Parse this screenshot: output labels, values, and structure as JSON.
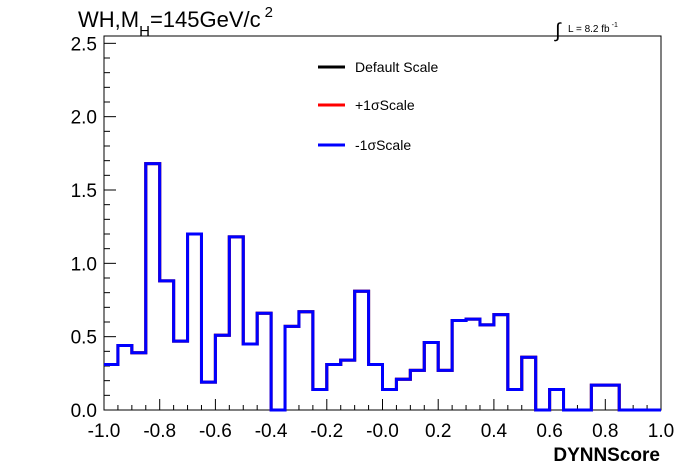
{
  "chart_data": {
    "type": "line",
    "title": "WH,M",
    "title_subscript": "H",
    "title_rest": "=145GeV/c",
    "title_superscript": "2",
    "lumi_integral": "∫",
    "lumi_label": "L = 8.2 fb",
    "lumi_superscript": "-1",
    "xlabel": "DYNNScore",
    "ylabel": "",
    "xlim": [
      -1.0,
      1.0
    ],
    "ylim": [
      0.0,
      2.55
    ],
    "x_ticks": [
      -1.0,
      -0.8,
      -0.6,
      -0.4,
      -0.2,
      0.0,
      0.2,
      0.4,
      0.6,
      0.8,
      1.0
    ],
    "x_tick_labels": [
      "-1.0",
      "-0.8",
      "-0.6",
      "-0.4",
      "-0.2",
      "-0.0",
      "0.2",
      "0.4",
      "0.6",
      "0.8",
      "1.0"
    ],
    "y_ticks": [
      0.0,
      0.5,
      1.0,
      1.5,
      2.0,
      2.5
    ],
    "y_tick_labels": [
      "0.0",
      "0.5",
      "1.0",
      "1.5",
      "2.0",
      "2.5"
    ],
    "grid": false,
    "legend_position": "top-center",
    "bin_edges": [
      -1.0,
      -0.95,
      -0.9,
      -0.85,
      -0.8,
      -0.75,
      -0.7,
      -0.65,
      -0.6,
      -0.55,
      -0.5,
      -0.45,
      -0.4,
      -0.35,
      -0.3,
      -0.25,
      -0.2,
      -0.15,
      -0.1,
      -0.05,
      0.0,
      0.05,
      0.1,
      0.15,
      0.2,
      0.25,
      0.3,
      0.35,
      0.4,
      0.45,
      0.5,
      0.55,
      0.6,
      0.65,
      0.7,
      0.75,
      0.8,
      0.85,
      0.9,
      0.95,
      1.0
    ],
    "series": [
      {
        "name": "Default Scale",
        "color": "#000000",
        "values": [
          0.31,
          0.44,
          0.39,
          1.68,
          0.88,
          0.47,
          1.2,
          0.19,
          0.51,
          1.18,
          0.45,
          0.66,
          0.0,
          0.57,
          0.67,
          0.14,
          0.31,
          0.34,
          0.81,
          0.31,
          0.14,
          0.21,
          0.27,
          0.46,
          0.27,
          0.61,
          0.62,
          0.58,
          0.65,
          0.14,
          0.36,
          0.0,
          0.14,
          0.0,
          0.0,
          0.17,
          0.17,
          0.0,
          0.0,
          0.0
        ]
      },
      {
        "name": "+1σScale",
        "color": "#ff0000",
        "values": [
          0.31,
          0.44,
          0.39,
          1.68,
          0.88,
          0.47,
          1.2,
          0.19,
          0.51,
          1.18,
          0.45,
          0.66,
          0.0,
          0.57,
          0.67,
          0.14,
          0.31,
          0.34,
          0.81,
          0.31,
          0.14,
          0.21,
          0.27,
          0.46,
          0.27,
          0.61,
          0.62,
          0.58,
          0.65,
          0.14,
          0.36,
          0.0,
          0.14,
          0.0,
          0.0,
          0.17,
          0.17,
          0.0,
          0.0,
          0.0
        ]
      },
      {
        "name": "-1σScale",
        "color": "#0000ff",
        "values": [
          0.31,
          0.44,
          0.39,
          1.68,
          0.88,
          0.47,
          1.2,
          0.19,
          0.51,
          1.18,
          0.45,
          0.66,
          0.0,
          0.57,
          0.67,
          0.14,
          0.31,
          0.34,
          0.81,
          0.31,
          0.14,
          0.21,
          0.27,
          0.46,
          0.27,
          0.61,
          0.62,
          0.58,
          0.65,
          0.14,
          0.36,
          0.0,
          0.14,
          0.0,
          0.0,
          0.17,
          0.17,
          0.0,
          0.0,
          0.0
        ]
      }
    ]
  }
}
